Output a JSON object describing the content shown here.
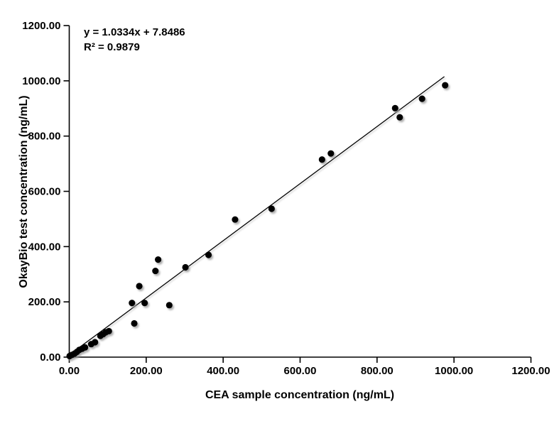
{
  "chart_data": {
    "type": "scatter",
    "title": "",
    "xlabel": "CEA sample concentration (ng/mL)",
    "ylabel": "OkayBio test concentration (ng/mL)",
    "xlim": [
      0,
      1200
    ],
    "ylim": [
      0,
      1200
    ],
    "grid": false,
    "legend": null,
    "xticks": {
      "values": [
        0,
        200,
        400,
        600,
        800,
        1000,
        1200
      ],
      "labels": [
        "0.00",
        "200.00",
        "400.00",
        "600.00",
        "800.00",
        "1000.00",
        "1200.00"
      ]
    },
    "yticks": {
      "values": [
        0,
        200,
        400,
        600,
        800,
        1000,
        1200
      ],
      "labels": [
        "0.00",
        "200.00",
        "400.00",
        "600.00",
        "800.00",
        "1000.00",
        "1200.00"
      ]
    },
    "points": [
      [
        1,
        4
      ],
      [
        7,
        8
      ],
      [
        14,
        13
      ],
      [
        20,
        19
      ],
      [
        26,
        26
      ],
      [
        33,
        30
      ],
      [
        41,
        35
      ],
      [
        57,
        47
      ],
      [
        67,
        54
      ],
      [
        81,
        77
      ],
      [
        88,
        83
      ],
      [
        95,
        90
      ],
      [
        103,
        94
      ],
      [
        163,
        196
      ],
      [
        169,
        122
      ],
      [
        182,
        257
      ],
      [
        196,
        196
      ],
      [
        224,
        312
      ],
      [
        231,
        353
      ],
      [
        260,
        188
      ],
      [
        302,
        325
      ],
      [
        362,
        370
      ],
      [
        431,
        498
      ],
      [
        526,
        537
      ],
      [
        657,
        715
      ],
      [
        680,
        737
      ],
      [
        847,
        901
      ],
      [
        859,
        868
      ],
      [
        917,
        935
      ],
      [
        977,
        984
      ]
    ],
    "trendline": {
      "slope": 1.0334,
      "intercept": 7.8486,
      "x_start": 0,
      "x_end": 975
    },
    "annotations": {
      "equation": "y = 1.0334x + 7.8486",
      "r_squared": "R² = 0.9879"
    },
    "colors": {
      "point": "#000000",
      "line": "#000000",
      "axis": "#000000",
      "background": "#ffffff",
      "shadow": "#999999"
    }
  }
}
